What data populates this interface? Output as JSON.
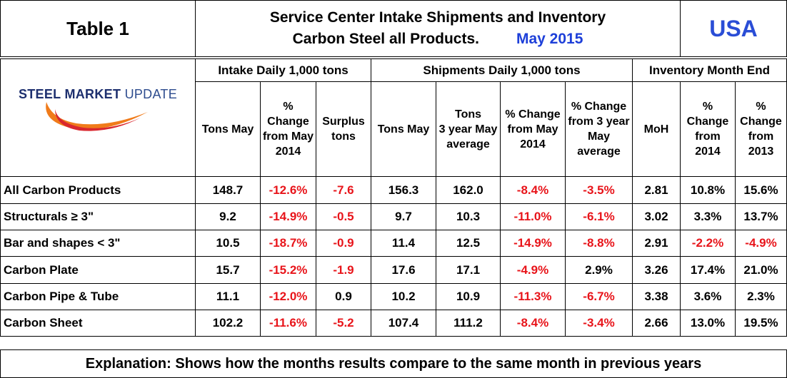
{
  "header": {
    "table_label": "Table 1",
    "title_line1": "Service Center Intake Shipments and Inventory",
    "title_line2": "Carbon Steel all Products.",
    "month": "May 2015",
    "country": "USA"
  },
  "logo": {
    "part1": "STEEL",
    "part2": "MARKET",
    "part3": "UPDATE"
  },
  "groups": {
    "intake": "Intake Daily 1,000 tons",
    "shipments": "Shipments Daily 1,000 tons",
    "inventory": "Inventory Month End"
  },
  "columns": [
    [
      "Tons May"
    ],
    [
      "%",
      "Change",
      "from May",
      "2014"
    ],
    [
      "Surplus",
      "tons"
    ],
    [
      "Tons May"
    ],
    [
      "Tons",
      "3 year May",
      "average"
    ],
    [
      "% Change",
      "from May",
      "2014"
    ],
    [
      "% Change",
      "from 3 year",
      "May",
      "average"
    ],
    [
      "MoH"
    ],
    [
      "%",
      "Change",
      "from",
      "2014"
    ],
    [
      "%",
      "Change",
      "from",
      "2013"
    ]
  ],
  "rows": [
    {
      "label": "All Carbon Products",
      "values": [
        "148.7",
        "-12.6%",
        "-7.6",
        "156.3",
        "162.0",
        "-8.4%",
        "-3.5%",
        "2.81",
        "10.8%",
        "15.6%"
      ]
    },
    {
      "label": "Structurals ≥ 3\"",
      "values": [
        "9.2",
        "-14.9%",
        "-0.5",
        "9.7",
        "10.3",
        "-11.0%",
        "-6.1%",
        "3.02",
        "3.3%",
        "13.7%"
      ]
    },
    {
      "label": "Bar and shapes < 3\"",
      "values": [
        "10.5",
        "-18.7%",
        "-0.9",
        "11.4",
        "12.5",
        "-14.9%",
        "-8.8%",
        "2.91",
        "-2.2%",
        "-4.9%"
      ]
    },
    {
      "label": "Carbon Plate",
      "values": [
        "15.7",
        "-15.2%",
        "-1.9",
        "17.6",
        "17.1",
        "-4.9%",
        "2.9%",
        "3.26",
        "17.4%",
        "21.0%"
      ]
    },
    {
      "label": "Carbon Pipe & Tube",
      "values": [
        "11.1",
        "-12.0%",
        "0.9",
        "10.2",
        "10.9",
        "-11.3%",
        "-6.7%",
        "3.38",
        "3.6%",
        "2.3%"
      ]
    },
    {
      "label": "Carbon Sheet",
      "values": [
        "102.2",
        "-11.6%",
        "-5.2",
        "107.4",
        "111.2",
        "-8.4%",
        "-3.4%",
        "2.66",
        "13.0%",
        "19.5%"
      ]
    }
  ],
  "explanation": "Explanation: Shows how the months results compare to the same month in previous years",
  "colors": {
    "negative": "#e8141a",
    "month": "#1d3fd9",
    "country": "#2a4dd6",
    "logo_navy": "#1d2f6e",
    "logo_orange": "#f07b1a",
    "logo_red": "#d9272e"
  }
}
